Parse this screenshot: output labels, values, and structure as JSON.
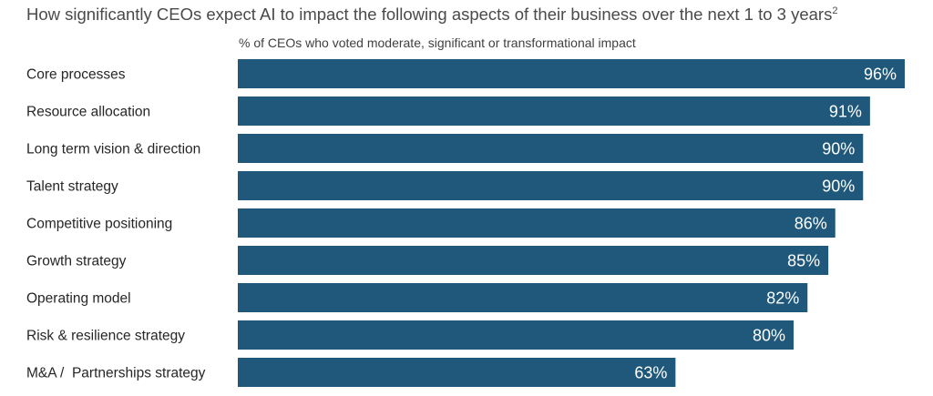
{
  "chart_data": {
    "type": "bar",
    "orientation": "horizontal",
    "title": "How significantly CEOs expect AI to impact the following aspects of their business over the next 1 to 3 years",
    "title_footnote": "2",
    "subtitle": "% of CEOs who voted moderate, significant or transformational impact",
    "categories": [
      "Core processes",
      "Resource allocation",
      "Long term vision & direction",
      "Talent strategy",
      "Competitive positioning",
      "Growth strategy",
      "Operating model",
      "Risk & resilience strategy",
      "M&A /  Partnerships strategy"
    ],
    "values": [
      96,
      91,
      90,
      90,
      86,
      85,
      82,
      80,
      63
    ],
    "value_labels": [
      "96%",
      "91%",
      "90%",
      "90%",
      "86%",
      "85%",
      "82%",
      "80%",
      "63%"
    ],
    "unit": "%",
    "xlim": [
      0,
      96
    ],
    "grid": false,
    "legend": "none",
    "bar_color": "#1f587a",
    "label_color": "#ffffff"
  }
}
